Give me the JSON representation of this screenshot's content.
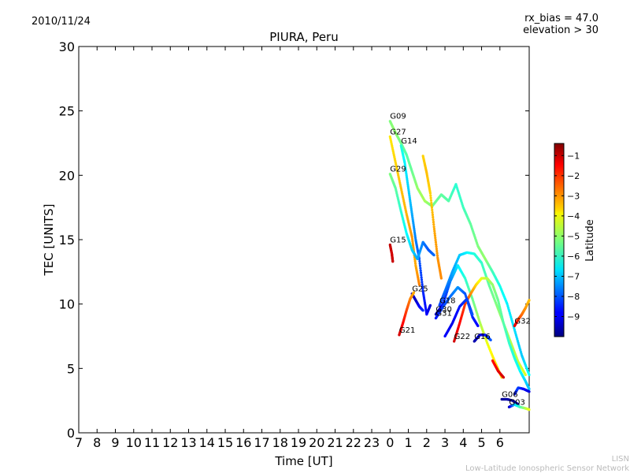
{
  "header": {
    "date": "2010/11/24",
    "rx_bias": "rx_bias = 47.0",
    "elevation": "elevation > 30"
  },
  "credit": {
    "line1": "LISN",
    "line2": "Low-Latitude Ionospheric Sensor Network"
  },
  "chart_data": {
    "type": "scatter",
    "title": "PIURA, Peru",
    "xlabel": "Time [UT]",
    "ylabel": "TEC [UNITS]",
    "x_tick_labels": [
      "7",
      "8",
      "9",
      "10",
      "11",
      "12",
      "13",
      "14",
      "15",
      "16",
      "17",
      "18",
      "19",
      "20",
      "21",
      "22",
      "23",
      "0",
      "1",
      "2",
      "3",
      "4",
      "5",
      "6"
    ],
    "x_range_hours": [
      7,
      31.6
    ],
    "ylim": [
      0,
      30
    ],
    "y_ticks": [
      0,
      5,
      10,
      15,
      20,
      25,
      30
    ],
    "colorbar": {
      "label": "Latitude",
      "range": [
        -10,
        -0.4
      ],
      "ticks": [
        -9,
        -8,
        -7,
        -6,
        -5,
        -4,
        -3,
        -2,
        -1
      ],
      "tick_labels": [
        "−9",
        "−8",
        "−7",
        "−6",
        "−5",
        "−4",
        "−3",
        "−2",
        "−1"
      ]
    },
    "series": [
      {
        "name": "G09",
        "points": [
          [
            24.0,
            24.2,
            -5.2
          ],
          [
            24.3,
            23.3,
            -5.0
          ],
          [
            24.6,
            22.5,
            -5.3
          ],
          [
            24.9,
            21.6,
            -5.6
          ],
          [
            25.2,
            20.3,
            -5.4
          ],
          [
            25.5,
            19.0,
            -5.0
          ],
          [
            25.9,
            18.0,
            -4.8
          ],
          [
            26.3,
            17.6,
            -5.3
          ],
          [
            26.8,
            18.5,
            -5.5
          ],
          [
            27.2,
            18.0,
            -5.6
          ],
          [
            27.6,
            19.3,
            -6.0
          ],
          [
            28.0,
            17.5,
            -5.8
          ],
          [
            28.4,
            16.2,
            -5.5
          ],
          [
            28.8,
            14.5,
            -5.2
          ],
          [
            29.2,
            13.5,
            -5.0
          ],
          [
            29.6,
            12.5,
            -5.8
          ],
          [
            30.0,
            11.4,
            -6.2
          ],
          [
            30.4,
            10.0,
            -6.5
          ],
          [
            30.8,
            8.0,
            -6.7
          ],
          [
            31.2,
            6.0,
            -6.9
          ],
          [
            31.6,
            4.5,
            -6.4
          ]
        ]
      },
      {
        "name": "G27",
        "points": [
          [
            24.0,
            23.0,
            -3.8
          ],
          [
            24.3,
            21.0,
            -3.6
          ],
          [
            24.6,
            19.0,
            -3.4
          ],
          [
            24.9,
            17.0,
            -3.3
          ],
          [
            25.2,
            15.2,
            -3.0
          ],
          [
            25.4,
            13.0,
            -3.2
          ],
          [
            25.6,
            11.5,
            -2.8
          ]
        ]
      },
      {
        "name": "G14",
        "points": [
          [
            24.6,
            22.3,
            -6.0
          ],
          [
            24.8,
            21.0,
            -6.5
          ],
          [
            25.0,
            19.0,
            -6.8
          ],
          [
            25.2,
            17.0,
            -7.2
          ],
          [
            25.4,
            15.0,
            -7.6
          ],
          [
            25.6,
            13.5,
            -8.0
          ],
          [
            25.8,
            11.0,
            -8.4
          ],
          [
            26.0,
            9.2,
            -8.8
          ],
          [
            26.2,
            9.9,
            -9.2
          ]
        ]
      },
      {
        "name": "G29",
        "points": [
          [
            24.0,
            20.1,
            -5.2
          ],
          [
            24.3,
            19.0,
            -5.5
          ],
          [
            24.6,
            17.2,
            -6.0
          ],
          [
            24.9,
            15.5,
            -6.4
          ],
          [
            25.2,
            14.2,
            -6.8
          ],
          [
            25.5,
            13.5,
            -7.2
          ],
          [
            25.8,
            14.8,
            -7.6
          ],
          [
            26.1,
            14.2,
            -8.0
          ],
          [
            26.4,
            13.8,
            -7.8
          ]
        ]
      },
      {
        "name": "G15",
        "points": [
          [
            24.0,
            14.6,
            -1.0
          ],
          [
            24.1,
            13.9,
            -1.2
          ],
          [
            24.15,
            13.3,
            -1.1
          ]
        ]
      },
      {
        "name": "G25",
        "points": [
          [
            25.2,
            10.8,
            -9.2
          ],
          [
            25.4,
            10.3,
            -9.4
          ],
          [
            25.6,
            9.8,
            -8.8
          ],
          [
            25.8,
            9.5,
            -8.4
          ]
        ]
      },
      {
        "name": "G18",
        "points": [
          [
            26.7,
            9.9,
            -8.2
          ],
          [
            27.0,
            11.0,
            -7.8
          ],
          [
            27.4,
            12.5,
            -7.3
          ],
          [
            27.8,
            13.8,
            -6.9
          ],
          [
            28.2,
            14.0,
            -6.5
          ],
          [
            28.6,
            13.9,
            -6.1
          ],
          [
            29.0,
            13.2,
            -5.9
          ],
          [
            29.4,
            11.5,
            -5.5
          ],
          [
            29.8,
            10.0,
            -5.2
          ],
          [
            30.2,
            8.5,
            -4.9
          ],
          [
            30.6,
            7.0,
            -4.7
          ],
          [
            31.0,
            5.5,
            -4.5
          ],
          [
            31.4,
            4.5,
            -4.3
          ]
        ]
      },
      {
        "name": "G30",
        "points": [
          [
            26.5,
            9.2,
            -9.6
          ],
          [
            26.9,
            10.0,
            -8.6
          ],
          [
            27.3,
            11.8,
            -7.6
          ],
          [
            27.7,
            13.0,
            -6.6
          ],
          [
            28.1,
            12.0,
            -6.0
          ],
          [
            28.5,
            10.4,
            -5.4
          ],
          [
            28.9,
            8.6,
            -4.8
          ],
          [
            29.3,
            7.0,
            -4.2
          ],
          [
            29.7,
            5.6,
            -3.8
          ],
          [
            30.1,
            4.3,
            -3.6
          ]
        ]
      },
      {
        "name": "G31",
        "points": [
          [
            26.5,
            8.9,
            -8.6
          ],
          [
            26.9,
            9.8,
            -8.2
          ],
          [
            27.3,
            10.6,
            -7.8
          ],
          [
            27.7,
            11.3,
            -7.4
          ],
          [
            28.1,
            10.8,
            -8.0
          ],
          [
            28.5,
            9.0,
            -8.4
          ],
          [
            28.8,
            8.3,
            -8.8
          ]
        ]
      },
      {
        "name": "G21",
        "points": [
          [
            24.5,
            7.6,
            -1.2
          ],
          [
            24.7,
            8.5,
            -1.6
          ],
          [
            24.9,
            9.5,
            -2.2
          ],
          [
            25.1,
            10.4,
            -2.8
          ],
          [
            25.3,
            10.9,
            -3.2
          ]
        ]
      },
      {
        "name": "G22",
        "points": [
          [
            27.5,
            7.1,
            -1.2
          ],
          [
            27.8,
            8.5,
            -1.6
          ],
          [
            28.1,
            10.0,
            -2.2
          ],
          [
            28.4,
            10.8,
            -2.8
          ],
          [
            28.7,
            11.5,
            -3.6
          ],
          [
            29.0,
            12.0,
            -4.2
          ],
          [
            29.3,
            12.0,
            -4.6
          ],
          [
            29.6,
            11.5,
            -5.0
          ],
          [
            29.9,
            10.3,
            -5.4
          ],
          [
            30.2,
            8.5,
            -5.6
          ],
          [
            30.5,
            7.0,
            -5.9
          ],
          [
            30.8,
            5.8,
            -6.1
          ],
          [
            31.1,
            4.8,
            -6.4
          ],
          [
            31.4,
            4.0,
            -6.8
          ],
          [
            31.6,
            3.4,
            -7.0
          ]
        ]
      },
      {
        "name": "G16",
        "points": [
          [
            28.6,
            7.1,
            -9.6
          ],
          [
            28.9,
            7.6,
            -9.2
          ],
          [
            29.2,
            7.6,
            -8.6
          ],
          [
            29.5,
            7.2,
            -8.0
          ]
        ]
      },
      {
        "name": "G32",
        "points": [
          [
            30.8,
            8.3,
            -1.2
          ],
          [
            31.0,
            8.8,
            -2.0
          ],
          [
            31.2,
            9.2,
            -2.6
          ],
          [
            31.4,
            9.7,
            -3.0
          ],
          [
            31.6,
            10.3,
            -3.4
          ]
        ]
      },
      {
        "name": "G06",
        "points": [
          [
            30.1,
            2.6,
            -9.8
          ],
          [
            30.4,
            2.6,
            -9.6
          ],
          [
            30.7,
            2.5,
            -9.8
          ],
          [
            31.0,
            2.2,
            -9.5
          ]
        ]
      },
      {
        "name": "G03",
        "points": [
          [
            30.5,
            2.0,
            -9.6
          ],
          [
            30.8,
            2.2,
            -7.0
          ],
          [
            31.1,
            2.0,
            -5.8
          ],
          [
            31.4,
            1.9,
            -4.8
          ],
          [
            31.6,
            1.8,
            -4.2
          ]
        ]
      },
      {
        "name": "",
        "points": [
          [
            25.8,
            21.5,
            -3.6
          ],
          [
            26.0,
            20.2,
            -3.4
          ],
          [
            26.2,
            18.6,
            -3.6
          ],
          [
            26.4,
            16.0,
            -3.2
          ],
          [
            26.6,
            13.6,
            -3.0
          ],
          [
            26.8,
            12.0,
            -2.9
          ]
        ]
      },
      {
        "name": "",
        "points": [
          [
            27.0,
            7.5,
            -8.8
          ],
          [
            27.4,
            8.5,
            -9.0
          ],
          [
            27.8,
            9.8,
            -8.6
          ],
          [
            28.2,
            10.4,
            -8.2
          ],
          [
            28.5,
            9.2,
            -8.0
          ]
        ]
      },
      {
        "name": "",
        "points": [
          [
            29.6,
            5.6,
            -1.8
          ],
          [
            29.9,
            4.8,
            -1.4
          ],
          [
            30.2,
            4.3,
            -1.2
          ]
        ]
      },
      {
        "name": "",
        "points": [
          [
            30.8,
            3.0,
            -8.6
          ],
          [
            31.0,
            3.5,
            -8.2
          ],
          [
            31.3,
            3.4,
            -8.8
          ],
          [
            31.6,
            3.2,
            -9.1
          ]
        ]
      }
    ]
  }
}
